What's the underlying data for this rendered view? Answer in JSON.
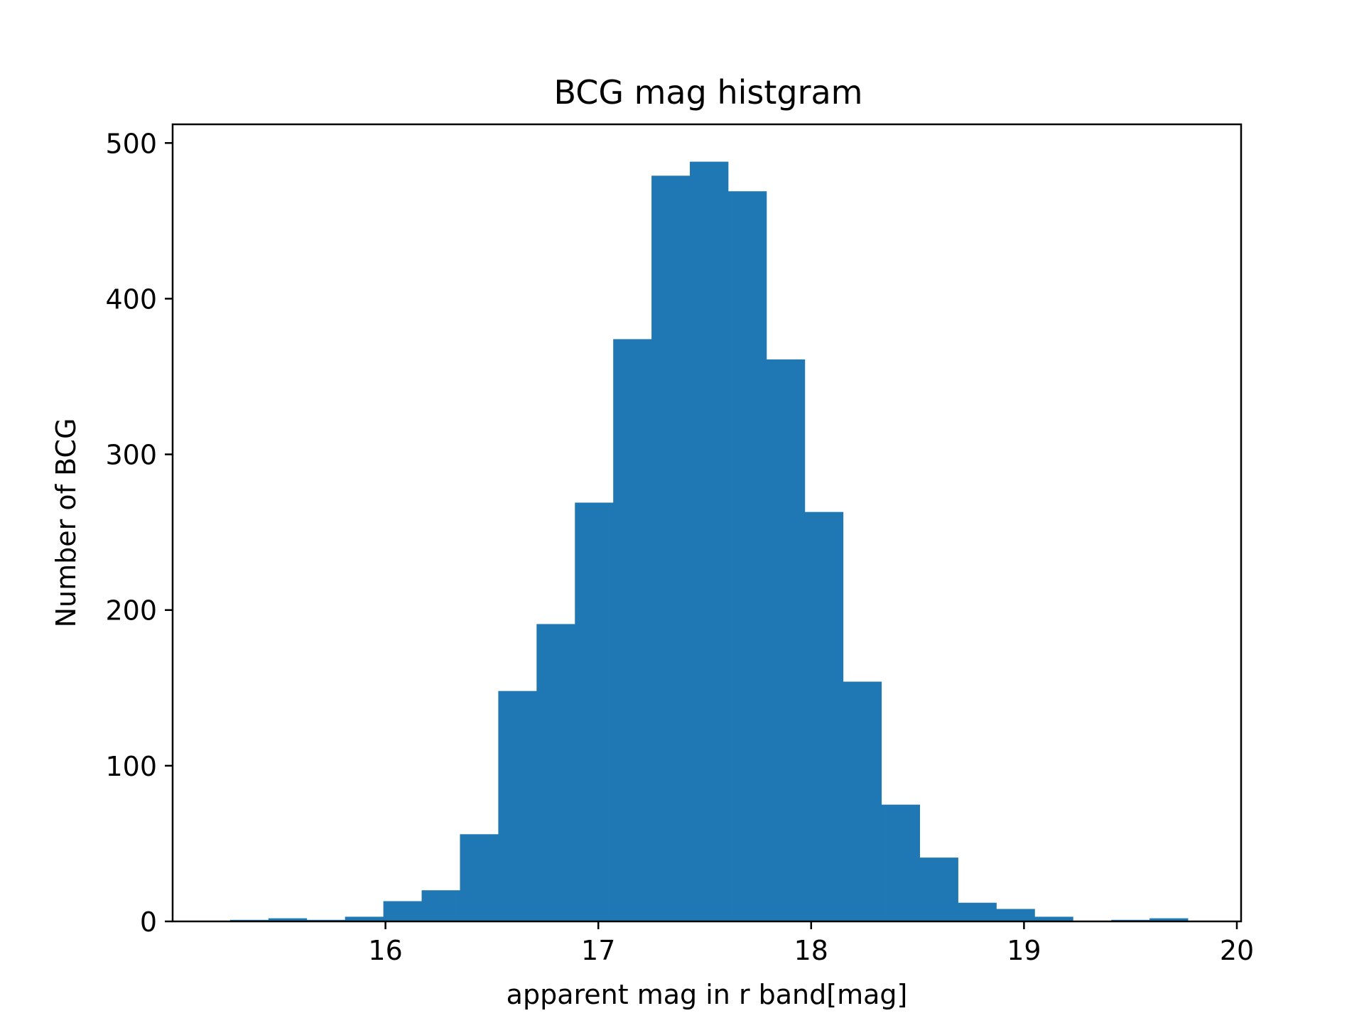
{
  "chart_data": {
    "type": "bar",
    "title": "BCG mag histgram",
    "xlabel": "apparent mag in r band[mag]",
    "ylabel": "Number of BCG",
    "xlim": [
      15.0,
      20.02
    ],
    "ylim": [
      0,
      512
    ],
    "xticks": [
      16,
      17,
      18,
      19,
      20
    ],
    "xtick_labels": [
      "16",
      "17",
      "18",
      "19",
      "20"
    ],
    "yticks": [
      0,
      100,
      200,
      300,
      400,
      500
    ],
    "ytick_labels": [
      "0",
      "100",
      "200",
      "300",
      "400",
      "500"
    ],
    "grid": false,
    "bin_edges": [
      15.27,
      15.45,
      15.63,
      15.81,
      15.99,
      16.17,
      16.35,
      16.53,
      16.71,
      16.89,
      17.07,
      17.25,
      17.43,
      17.61,
      17.79,
      17.97,
      18.15,
      18.33,
      18.51,
      18.69,
      18.87,
      19.05,
      19.23,
      19.41,
      19.59,
      19.77
    ],
    "values": [
      1,
      2,
      1,
      3,
      13,
      20,
      56,
      148,
      191,
      269,
      374,
      479,
      488,
      469,
      361,
      263,
      154,
      75,
      41,
      12,
      8,
      3,
      0,
      1,
      2
    ],
    "colors": {
      "bar": "#1f77b4",
      "axes": "#000000",
      "background": "#ffffff"
    }
  }
}
